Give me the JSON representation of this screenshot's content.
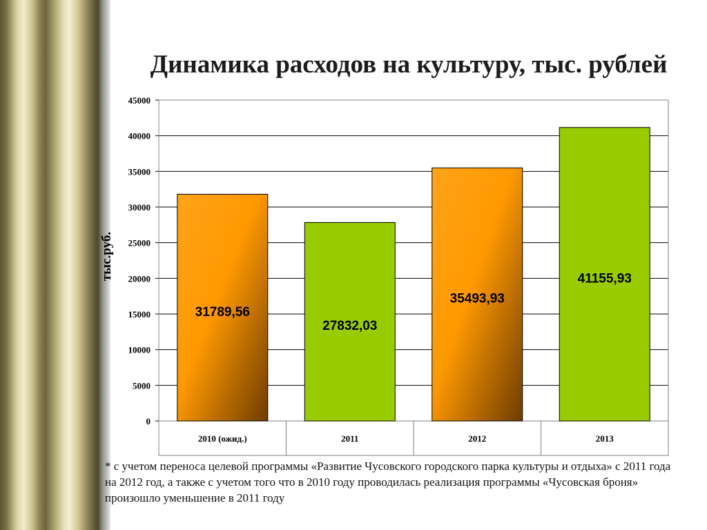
{
  "slide": {
    "title": "Динамика расходов на культуру, тыс. рублей",
    "footnote": " * с учетом переноса целевой программы «Развитие Чусовского городского парка культуры и отдыха» с 2011 года на 2012 год, а также с учетом того что в 2010 году проводилась реализация программы «Чусовская броня» произошло уменьшение в 2011 году"
  },
  "chart_data": {
    "type": "bar",
    "title": "Динамика расходов на культуру, тыс. рублей",
    "xlabel": "",
    "ylabel": "тыс.руб.",
    "categories": [
      "2010 (ожид.)",
      "2011",
      "2012",
      "2013"
    ],
    "values": [
      31789.56,
      27832.03,
      35493.93,
      41155.93
    ],
    "value_labels": [
      "31789,56",
      "27832,03",
      "35493,93",
      "41155,93"
    ],
    "bar_styles": [
      "orange",
      "green",
      "orange",
      "green"
    ],
    "ylim": [
      0,
      45000
    ],
    "yticks": [
      0,
      5000,
      10000,
      15000,
      20000,
      25000,
      30000,
      35000,
      40000,
      45000
    ],
    "grid": true,
    "legend": "none",
    "colors": {
      "orange_light": "#ff9900",
      "orange_dark": "#6e3c00",
      "green": "#99cc00",
      "grid": "#000000"
    }
  }
}
